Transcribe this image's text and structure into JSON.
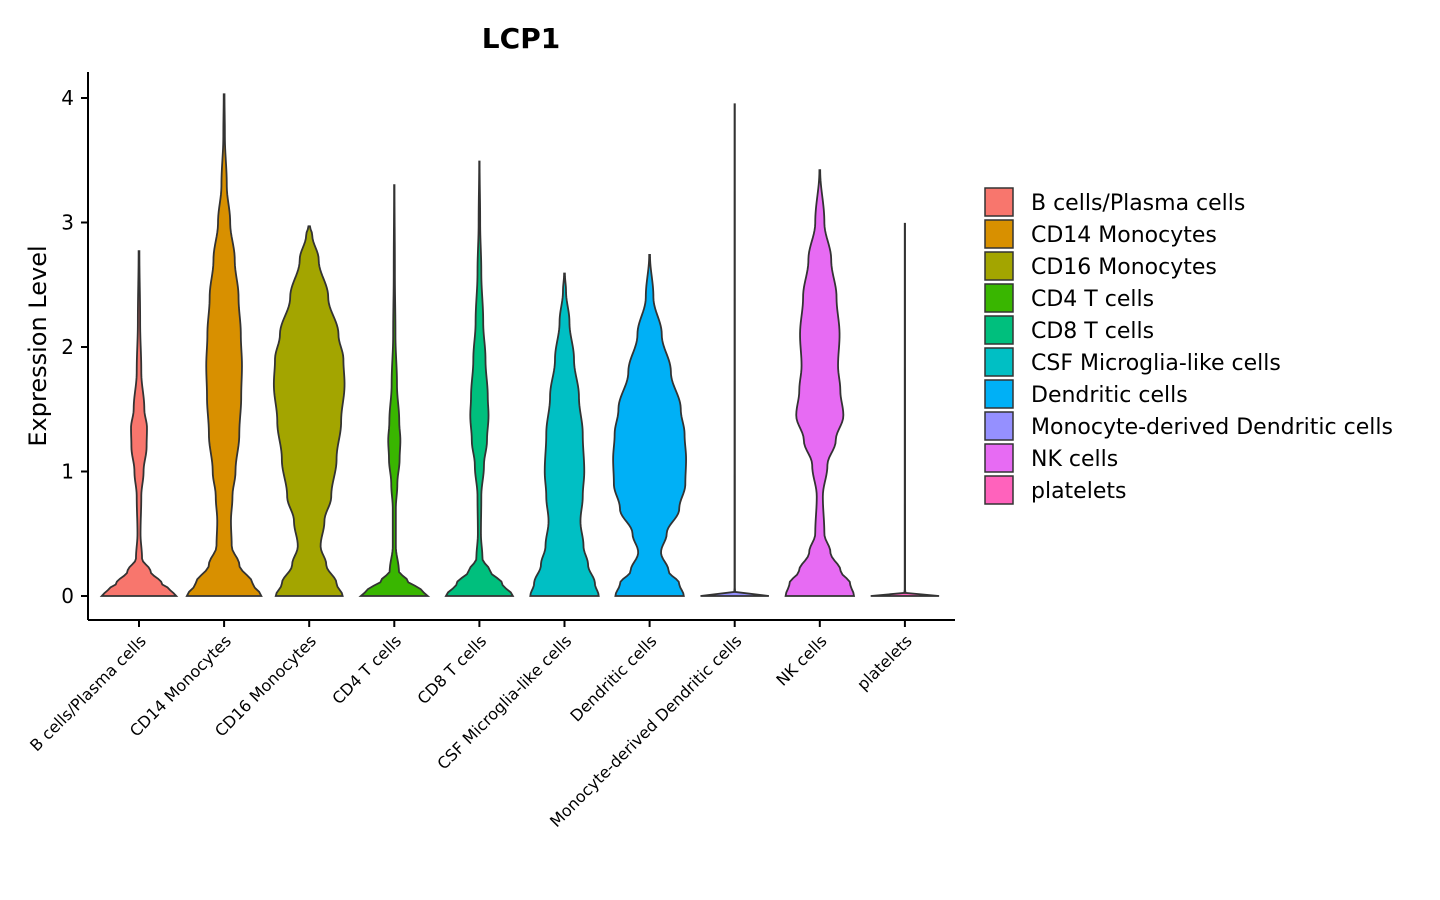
{
  "chart_data": {
    "type": "violin",
    "title": "LCP1",
    "xlabel": "",
    "ylabel": "Expression Level",
    "ylim": [
      -0.2,
      4.2
    ],
    "yticks": [
      0,
      1,
      2,
      3,
      4
    ],
    "categories": [
      "B cells/Plasma cells",
      "CD14 Monocytes",
      "CD16 Monocytes",
      "CD4 T cells",
      "CD8 T cells",
      "CSF Microglia-like cells",
      "Dendritic cells",
      "Monocyte-derived Dendritic cells",
      "NK cells",
      "platelets"
    ],
    "colors": [
      "#F8766D",
      "#D89000",
      "#A3A500",
      "#39B600",
      "#00BF7D",
      "#00BFC4",
      "#00B0F6",
      "#9590FF",
      "#E76BF3",
      "#FF62BC"
    ],
    "legend_position": "right",
    "violins": [
      {
        "name": "B cells/Plasma cells",
        "max": 2.77,
        "profile": [
          [
            0,
            0.98
          ],
          [
            0.05,
            0.82
          ],
          [
            0.1,
            0.6
          ],
          [
            0.2,
            0.3
          ],
          [
            0.3,
            0.08
          ],
          [
            0.5,
            0.04
          ],
          [
            0.8,
            0.06
          ],
          [
            1.0,
            0.12
          ],
          [
            1.2,
            0.2
          ],
          [
            1.35,
            0.21
          ],
          [
            1.5,
            0.14
          ],
          [
            1.8,
            0.06
          ],
          [
            2.2,
            0.03
          ],
          [
            2.77,
            0.01
          ]
        ]
      },
      {
        "name": "CD14 Monocytes",
        "max": 4.03,
        "profile": [
          [
            0,
            0.98
          ],
          [
            0.1,
            0.75
          ],
          [
            0.25,
            0.4
          ],
          [
            0.4,
            0.2
          ],
          [
            0.6,
            0.18
          ],
          [
            0.8,
            0.22
          ],
          [
            1.0,
            0.3
          ],
          [
            1.3,
            0.4
          ],
          [
            1.6,
            0.45
          ],
          [
            1.85,
            0.47
          ],
          [
            2.1,
            0.44
          ],
          [
            2.4,
            0.38
          ],
          [
            2.7,
            0.28
          ],
          [
            3.0,
            0.16
          ],
          [
            3.3,
            0.07
          ],
          [
            3.7,
            0.02
          ],
          [
            4.03,
            0.01
          ]
        ]
      },
      {
        "name": "CD16 Monocytes",
        "max": 2.97,
        "profile": [
          [
            0,
            0.88
          ],
          [
            0.1,
            0.72
          ],
          [
            0.25,
            0.45
          ],
          [
            0.4,
            0.3
          ],
          [
            0.6,
            0.4
          ],
          [
            0.8,
            0.58
          ],
          [
            1.1,
            0.72
          ],
          [
            1.4,
            0.84
          ],
          [
            1.7,
            0.93
          ],
          [
            1.9,
            0.9
          ],
          [
            2.1,
            0.77
          ],
          [
            2.4,
            0.5
          ],
          [
            2.7,
            0.25
          ],
          [
            2.9,
            0.08
          ],
          [
            2.97,
            0.02
          ]
        ]
      },
      {
        "name": "CD4 T cells",
        "max": 3.3,
        "profile": [
          [
            0,
            0.88
          ],
          [
            0.05,
            0.7
          ],
          [
            0.12,
            0.35
          ],
          [
            0.2,
            0.12
          ],
          [
            0.4,
            0.04
          ],
          [
            0.7,
            0.04
          ],
          [
            0.9,
            0.08
          ],
          [
            1.1,
            0.14
          ],
          [
            1.25,
            0.16
          ],
          [
            1.4,
            0.13
          ],
          [
            1.7,
            0.07
          ],
          [
            2.1,
            0.03
          ],
          [
            2.6,
            0.015
          ],
          [
            3.3,
            0.005
          ]
        ]
      },
      {
        "name": "CD8 T cells",
        "max": 3.49,
        "profile": [
          [
            0,
            0.88
          ],
          [
            0.1,
            0.6
          ],
          [
            0.2,
            0.28
          ],
          [
            0.3,
            0.08
          ],
          [
            0.5,
            0.04
          ],
          [
            0.8,
            0.05
          ],
          [
            1.05,
            0.12
          ],
          [
            1.25,
            0.2
          ],
          [
            1.45,
            0.24
          ],
          [
            1.6,
            0.22
          ],
          [
            1.9,
            0.16
          ],
          [
            2.2,
            0.1
          ],
          [
            2.6,
            0.05
          ],
          [
            3.0,
            0.02
          ],
          [
            3.49,
            0.005
          ]
        ]
      },
      {
        "name": "CSF Microglia-like cells",
        "max": 2.59,
        "profile": [
          [
            0,
            0.9
          ],
          [
            0.1,
            0.8
          ],
          [
            0.25,
            0.62
          ],
          [
            0.4,
            0.5
          ],
          [
            0.6,
            0.42
          ],
          [
            0.8,
            0.48
          ],
          [
            1.0,
            0.52
          ],
          [
            1.3,
            0.48
          ],
          [
            1.6,
            0.38
          ],
          [
            1.9,
            0.25
          ],
          [
            2.2,
            0.13
          ],
          [
            2.45,
            0.04
          ],
          [
            2.59,
            0.01
          ]
        ]
      },
      {
        "name": "Dendritic cells",
        "max": 2.74,
        "profile": [
          [
            0,
            0.9
          ],
          [
            0.1,
            0.78
          ],
          [
            0.2,
            0.5
          ],
          [
            0.35,
            0.3
          ],
          [
            0.5,
            0.45
          ],
          [
            0.7,
            0.78
          ],
          [
            0.9,
            0.94
          ],
          [
            1.1,
            0.96
          ],
          [
            1.3,
            0.92
          ],
          [
            1.5,
            0.82
          ],
          [
            1.8,
            0.56
          ],
          [
            2.1,
            0.32
          ],
          [
            2.4,
            0.1
          ],
          [
            2.74,
            0.01
          ]
        ]
      },
      {
        "name": "Monocyte-derived Dendritic cells",
        "max": 3.95,
        "profile": [
          [
            0,
            0.9
          ],
          [
            0.01,
            0.02
          ],
          [
            0.05,
            0.005
          ],
          [
            3.95,
            0.004
          ]
        ]
      },
      {
        "name": "NK cells",
        "max": 3.42,
        "profile": [
          [
            0,
            0.9
          ],
          [
            0.1,
            0.8
          ],
          [
            0.2,
            0.55
          ],
          [
            0.35,
            0.28
          ],
          [
            0.5,
            0.12
          ],
          [
            0.8,
            0.08
          ],
          [
            1.05,
            0.2
          ],
          [
            1.25,
            0.42
          ],
          [
            1.45,
            0.62
          ],
          [
            1.65,
            0.54
          ],
          [
            1.85,
            0.48
          ],
          [
            2.1,
            0.52
          ],
          [
            2.4,
            0.44
          ],
          [
            2.7,
            0.3
          ],
          [
            3.0,
            0.12
          ],
          [
            3.42,
            0.01
          ]
        ]
      },
      {
        "name": "platelets",
        "max": 2.99,
        "profile": [
          [
            0,
            0.9
          ],
          [
            0.01,
            0.02
          ],
          [
            0.05,
            0.005
          ],
          [
            2.99,
            0.004
          ]
        ]
      }
    ]
  }
}
